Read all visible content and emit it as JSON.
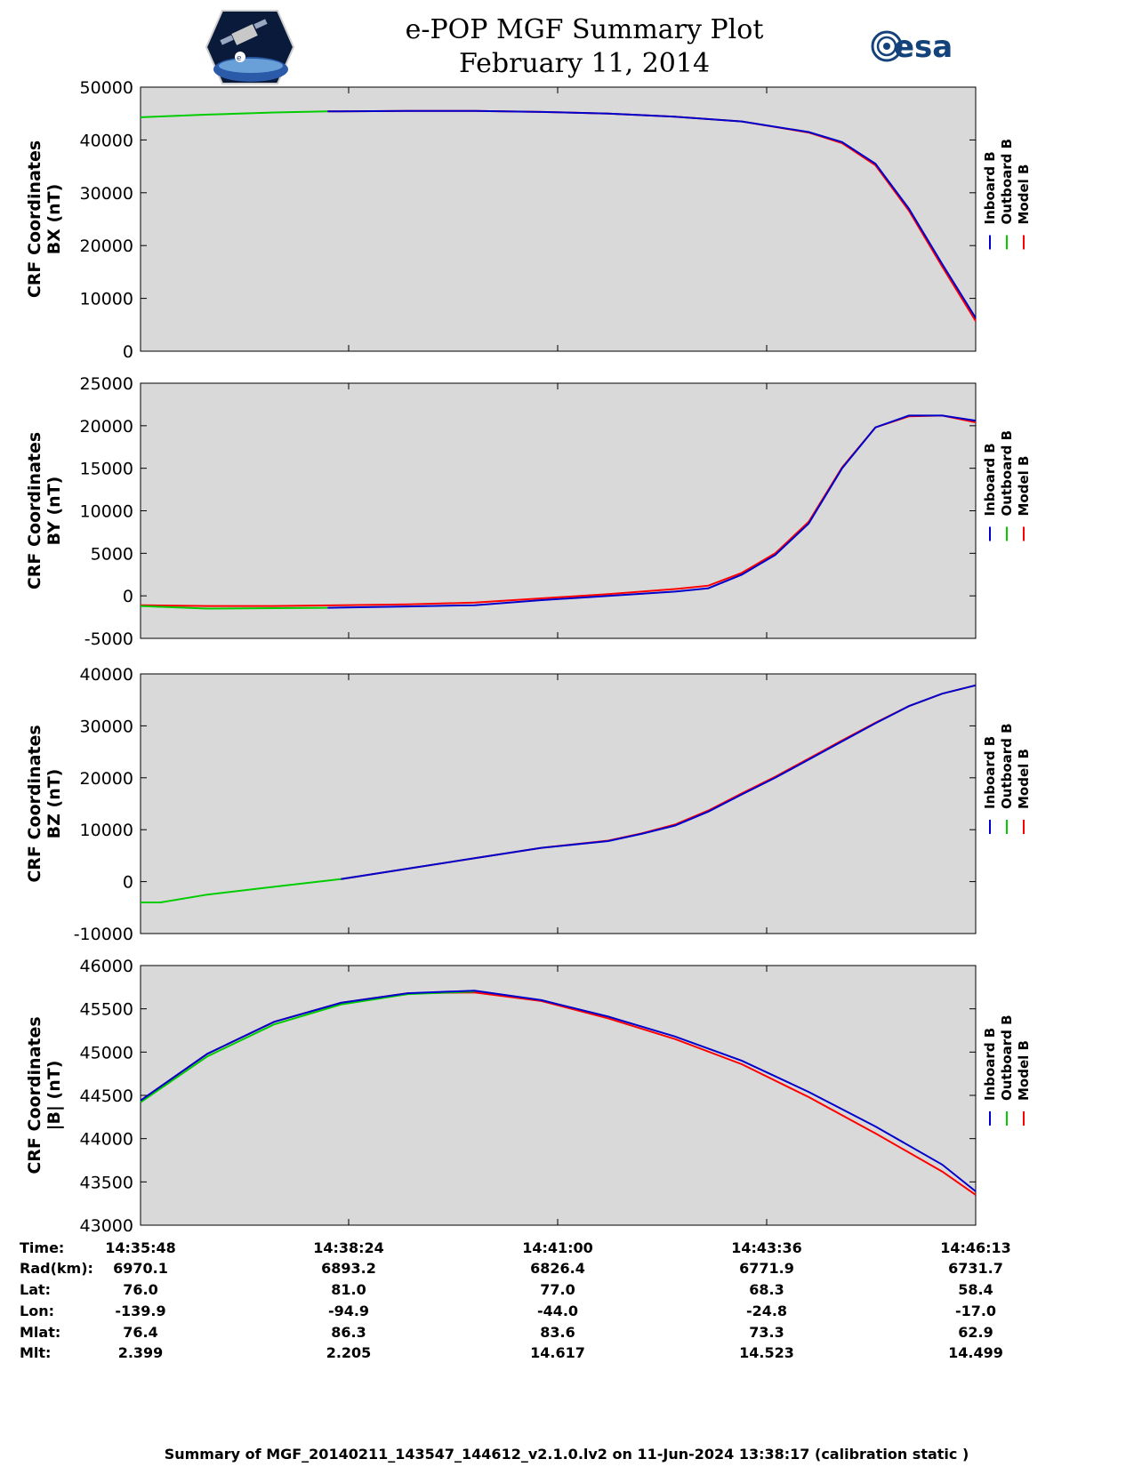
{
  "title": {
    "line1": "e-POP MGF Summary Plot",
    "line2": "February 11, 2014"
  },
  "logos": {
    "left": "e-POP CASSIOPE mission patch",
    "right_text": "esa",
    "left_color": "#1f3a7a",
    "right_color": "#14427a"
  },
  "legend": {
    "items": [
      {
        "label": "Inboard B",
        "color": "#0000cc"
      },
      {
        "label": "Outboard B",
        "color": "#00cc00"
      },
      {
        "label": "Model B",
        "color": "#ff0000"
      }
    ]
  },
  "plot_background": "#d9d9d9",
  "chart_data": [
    {
      "type": "line",
      "ylabel_line1": "CRF Coordinates",
      "ylabel_line2": "BX (nT)",
      "ylim": [
        0,
        50000
      ],
      "yticks": [
        0,
        10000,
        20000,
        30000,
        40000,
        50000
      ],
      "xlim": [
        0,
        625
      ],
      "series": [
        {
          "name": "Outboard B",
          "x": [
            0,
            50,
            100,
            140
          ],
          "y": [
            44300,
            44800,
            45200,
            45400
          ]
        },
        {
          "name": "Inboard B",
          "x": [
            140,
            200,
            250,
            300,
            350,
            400,
            450,
            500,
            525,
            550,
            575,
            600,
            625
          ],
          "y": [
            45400,
            45500,
            45500,
            45300,
            45000,
            44400,
            43500,
            41500,
            39600,
            35500,
            27000,
            16500,
            6300
          ]
        },
        {
          "name": "Model B",
          "x": [
            140,
            200,
            250,
            300,
            350,
            400,
            450,
            500,
            525,
            550,
            575,
            600,
            625
          ],
          "y": [
            45400,
            45500,
            45500,
            45300,
            45000,
            44400,
            43500,
            41400,
            39400,
            35200,
            26600,
            16000,
            5700
          ]
        }
      ]
    },
    {
      "type": "line",
      "ylabel_line1": "CRF Coordinates",
      "ylabel_line2": "BY (nT)",
      "ylim": [
        -5000,
        25000
      ],
      "yticks": [
        -5000,
        0,
        5000,
        10000,
        15000,
        20000,
        25000
      ],
      "xlim": [
        0,
        625
      ],
      "series": [
        {
          "name": "Outboard B",
          "x": [
            0,
            50,
            100,
            140
          ],
          "y": [
            -1200,
            -1500,
            -1450,
            -1400
          ]
        },
        {
          "name": "Inboard B",
          "x": [
            140,
            200,
            250,
            300,
            350,
            400,
            425,
            450,
            475,
            500,
            525,
            550,
            575,
            600,
            625
          ],
          "y": [
            -1400,
            -1250,
            -1100,
            -500,
            0,
            500,
            900,
            2500,
            4800,
            8500,
            15000,
            19800,
            21200,
            21200,
            20600
          ]
        },
        {
          "name": "Model B",
          "x": [
            0,
            50,
            100,
            150,
            200,
            250,
            300,
            350,
            400,
            425,
            450,
            475,
            500,
            525,
            550,
            575,
            600,
            625
          ],
          "y": [
            -1100,
            -1200,
            -1200,
            -1100,
            -1000,
            -800,
            -300,
            200,
            800,
            1200,
            2700,
            5000,
            8700,
            15100,
            19800,
            21100,
            21200,
            20400
          ]
        }
      ]
    },
    {
      "type": "line",
      "ylabel_line1": "CRF Coordinates",
      "ylabel_line2": "BZ (nT)",
      "ylim": [
        -10000,
        40000
      ],
      "yticks": [
        -10000,
        0,
        10000,
        20000,
        30000,
        40000
      ],
      "xlim": [
        0,
        625
      ],
      "series": [
        {
          "name": "Outboard B",
          "x": [
            0,
            15,
            50,
            100,
            150
          ],
          "y": [
            -4000,
            -4000,
            -2500,
            -1000,
            500
          ]
        },
        {
          "name": "Inboard B",
          "x": [
            150,
            200,
            250,
            300,
            350,
            375,
            400,
            425,
            450,
            475,
            500,
            525,
            550,
            575,
            600,
            625
          ],
          "y": [
            500,
            2500,
            4500,
            6500,
            7800,
            9200,
            10800,
            13500,
            16800,
            20000,
            23500,
            27000,
            30500,
            33800,
            36200,
            37800
          ]
        },
        {
          "name": "Model B",
          "x": [
            150,
            200,
            250,
            300,
            350,
            375,
            400,
            425,
            450,
            475,
            500,
            525,
            550,
            575,
            600,
            625
          ],
          "y": [
            500,
            2500,
            4500,
            6500,
            7900,
            9300,
            11000,
            13700,
            17000,
            20200,
            23700,
            27200,
            30600,
            33800,
            36200,
            37800
          ]
        }
      ]
    },
    {
      "type": "line",
      "ylabel_line1": "CRF Coordinates",
      "ylabel_line2": "|B| (nT)",
      "ylim": [
        43000,
        46000
      ],
      "yticks": [
        43000,
        43500,
        44000,
        44500,
        45000,
        45500,
        46000
      ],
      "xlim": [
        0,
        625
      ],
      "series": [
        {
          "name": "Outboard B",
          "x": [
            0,
            50,
            100,
            150,
            200,
            250
          ],
          "y": [
            44420,
            44950,
            45320,
            45550,
            45670,
            45700
          ]
        },
        {
          "name": "Inboard B",
          "x": [
            0,
            50,
            100,
            150,
            200,
            250,
            300,
            350,
            400,
            450,
            500,
            550,
            600,
            625
          ],
          "y": [
            44440,
            44980,
            45350,
            45570,
            45680,
            45710,
            45600,
            45410,
            45180,
            44900,
            44540,
            44140,
            43700,
            43390
          ]
        },
        {
          "name": "Model B",
          "x": [
            0,
            50,
            100,
            150,
            200,
            250,
            300,
            350,
            400,
            450,
            500,
            550,
            600,
            625
          ],
          "y": [
            44440,
            44980,
            45350,
            45570,
            45680,
            45690,
            45590,
            45390,
            45150,
            44860,
            44480,
            44060,
            43620,
            43350
          ]
        }
      ]
    }
  ],
  "info_table": {
    "rows": [
      {
        "label": "Time:",
        "values": [
          "14:35:48",
          "14:38:24",
          "14:41:00",
          "14:43:36",
          "14:46:13"
        ]
      },
      {
        "label": "Rad(km):",
        "values": [
          "6970.1",
          "6893.2",
          "6826.4",
          "6771.9",
          "6731.7"
        ]
      },
      {
        "label": "Lat:",
        "values": [
          "76.0",
          "81.0",
          "77.0",
          "68.3",
          "58.4"
        ]
      },
      {
        "label": "Lon:",
        "values": [
          "-139.9",
          "-94.9",
          "-44.0",
          "-24.8",
          "-17.0"
        ]
      },
      {
        "label": "Mlat:",
        "values": [
          "76.4",
          "86.3",
          "83.6",
          "73.3",
          "62.9"
        ]
      },
      {
        "label": "Mlt:",
        "values": [
          "2.399",
          "2.205",
          "14.617",
          "14.523",
          "14.499"
        ]
      }
    ]
  },
  "footer": "Summary of MGF_20140211_143547_144612_v2.1.0.lv2 on 11-Jun-2024 13:38:17 (calibration static )"
}
